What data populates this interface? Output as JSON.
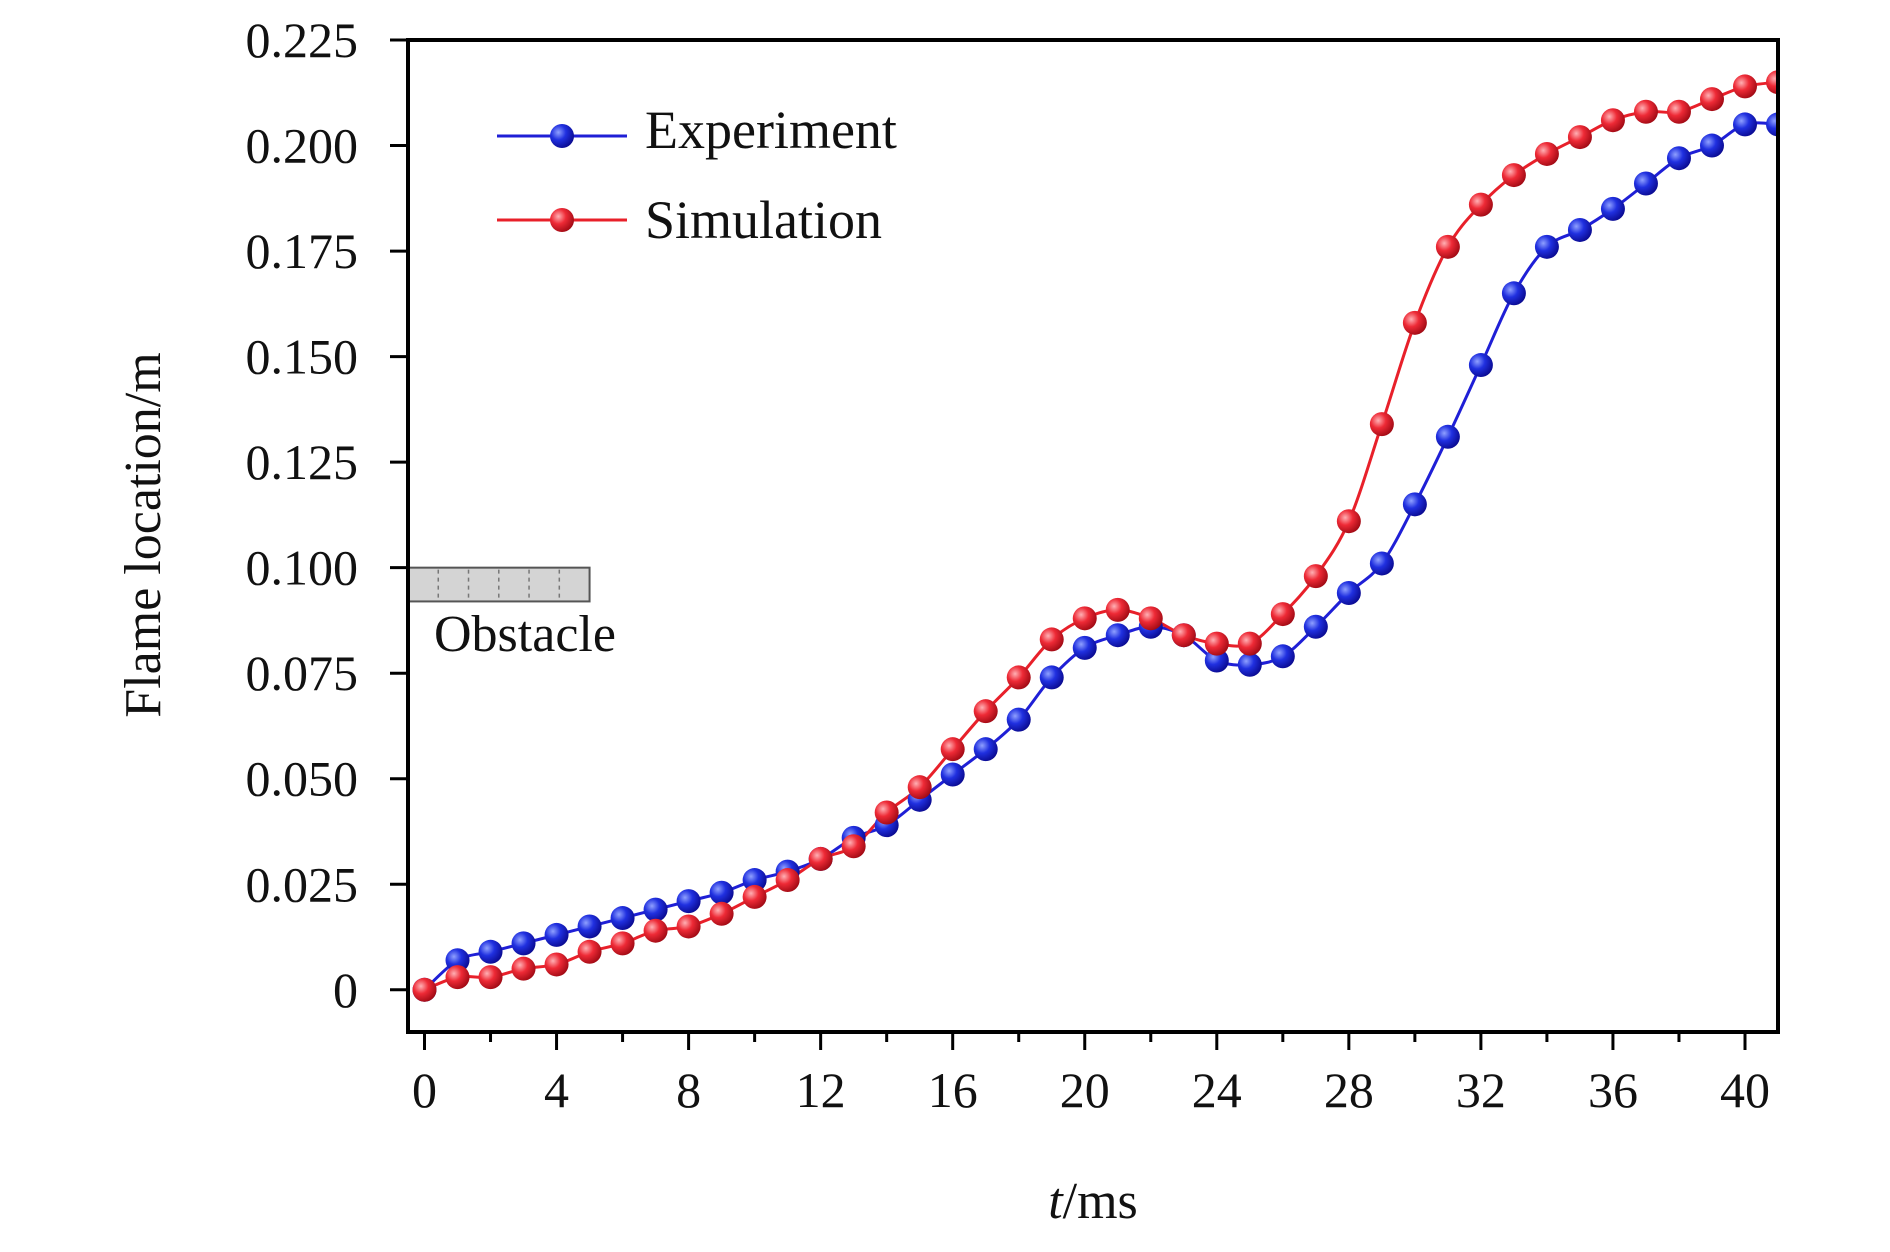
{
  "chart_data": {
    "type": "line",
    "title": "",
    "xlabel_italic": "t",
    "xlabel_rest": "/ms",
    "ylabel": "Flame location/m",
    "xlim": [
      -0.5,
      41
    ],
    "ylim": [
      -0.01,
      0.225
    ],
    "xticks": [
      0,
      4,
      8,
      12,
      16,
      20,
      24,
      28,
      32,
      36,
      40
    ],
    "xtick_labels": [
      "0",
      "4",
      "8",
      "12",
      "16",
      "20",
      "24",
      "28",
      "32",
      "36",
      "40"
    ],
    "yticks": [
      0,
      0.025,
      0.05,
      0.075,
      0.1,
      0.125,
      0.15,
      0.175,
      0.2,
      0.225
    ],
    "ytick_labels": [
      "0",
      "0.025",
      "0.050",
      "0.075",
      "0.100",
      "0.125",
      "0.150",
      "0.175",
      "0.200",
      "0.225"
    ],
    "grid": false,
    "legend_position": "top-left",
    "x": [
      0,
      1,
      2,
      3,
      4,
      5,
      6,
      7,
      8,
      9,
      10,
      11,
      12,
      13,
      14,
      15,
      16,
      17,
      18,
      19,
      20,
      21,
      22,
      23,
      24,
      25,
      26,
      27,
      28,
      29,
      30,
      31,
      32,
      33,
      34,
      35,
      36,
      37,
      38,
      39,
      40,
      41
    ],
    "series": [
      {
        "name": "Experiment",
        "color": "#1f1fd6",
        "values": [
          0,
          0.007,
          0.009,
          0.011,
          0.013,
          0.015,
          0.017,
          0.019,
          0.021,
          0.023,
          0.026,
          0.028,
          0.031,
          0.036,
          0.039,
          0.045,
          0.051,
          0.057,
          0.064,
          0.074,
          0.081,
          0.084,
          0.086,
          0.084,
          0.078,
          0.077,
          0.079,
          0.086,
          0.094,
          0.101,
          0.115,
          0.131,
          0.148,
          0.165,
          0.176,
          0.18,
          0.185,
          0.191,
          0.197,
          0.2,
          0.205,
          0.205
        ]
      },
      {
        "name": "Simulation",
        "color": "#e8202a",
        "values": [
          0,
          0.003,
          0.003,
          0.005,
          0.006,
          0.009,
          0.011,
          0.014,
          0.015,
          0.018,
          0.022,
          0.026,
          0.031,
          0.034,
          0.042,
          0.048,
          0.057,
          0.066,
          0.074,
          0.083,
          0.088,
          0.09,
          0.088,
          0.084,
          0.082,
          0.082,
          0.089,
          0.098,
          0.111,
          0.134,
          0.158,
          0.176,
          0.186,
          0.193,
          0.198,
          0.202,
          0.206,
          0.208,
          0.208,
          0.211,
          0.214,
          0.215
        ]
      }
    ],
    "annotations": [
      {
        "text": "Obstacle",
        "kind": "obstacle-block",
        "y_top": 0.1,
        "y_bottom": 0.092,
        "x_start": -0.5,
        "x_end": 5
      }
    ]
  }
}
